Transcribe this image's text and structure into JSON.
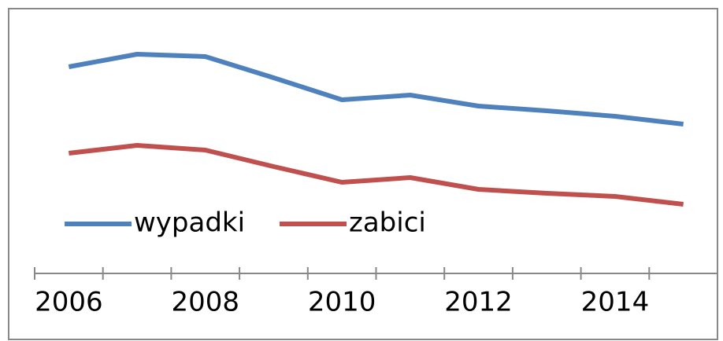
{
  "chart_data": {
    "type": "line",
    "categories": [
      "2006",
      null,
      "2008",
      null,
      "2010",
      null,
      "2012",
      null,
      "2014",
      null
    ],
    "series": [
      {
        "name": "wypadki",
        "color": "#4f81bd",
        "values": [
          263,
          279,
          276,
          249,
          221,
          227,
          213,
          207,
          200,
          190
        ]
      },
      {
        "name": "zabici",
        "color": "#c0504d",
        "values": [
          153,
          163,
          157,
          136,
          116,
          122,
          107,
          102,
          98,
          88
        ]
      }
    ],
    "ylim": [
      0,
      328
    ],
    "grid": false,
    "legend": "inside-bottom-left"
  }
}
